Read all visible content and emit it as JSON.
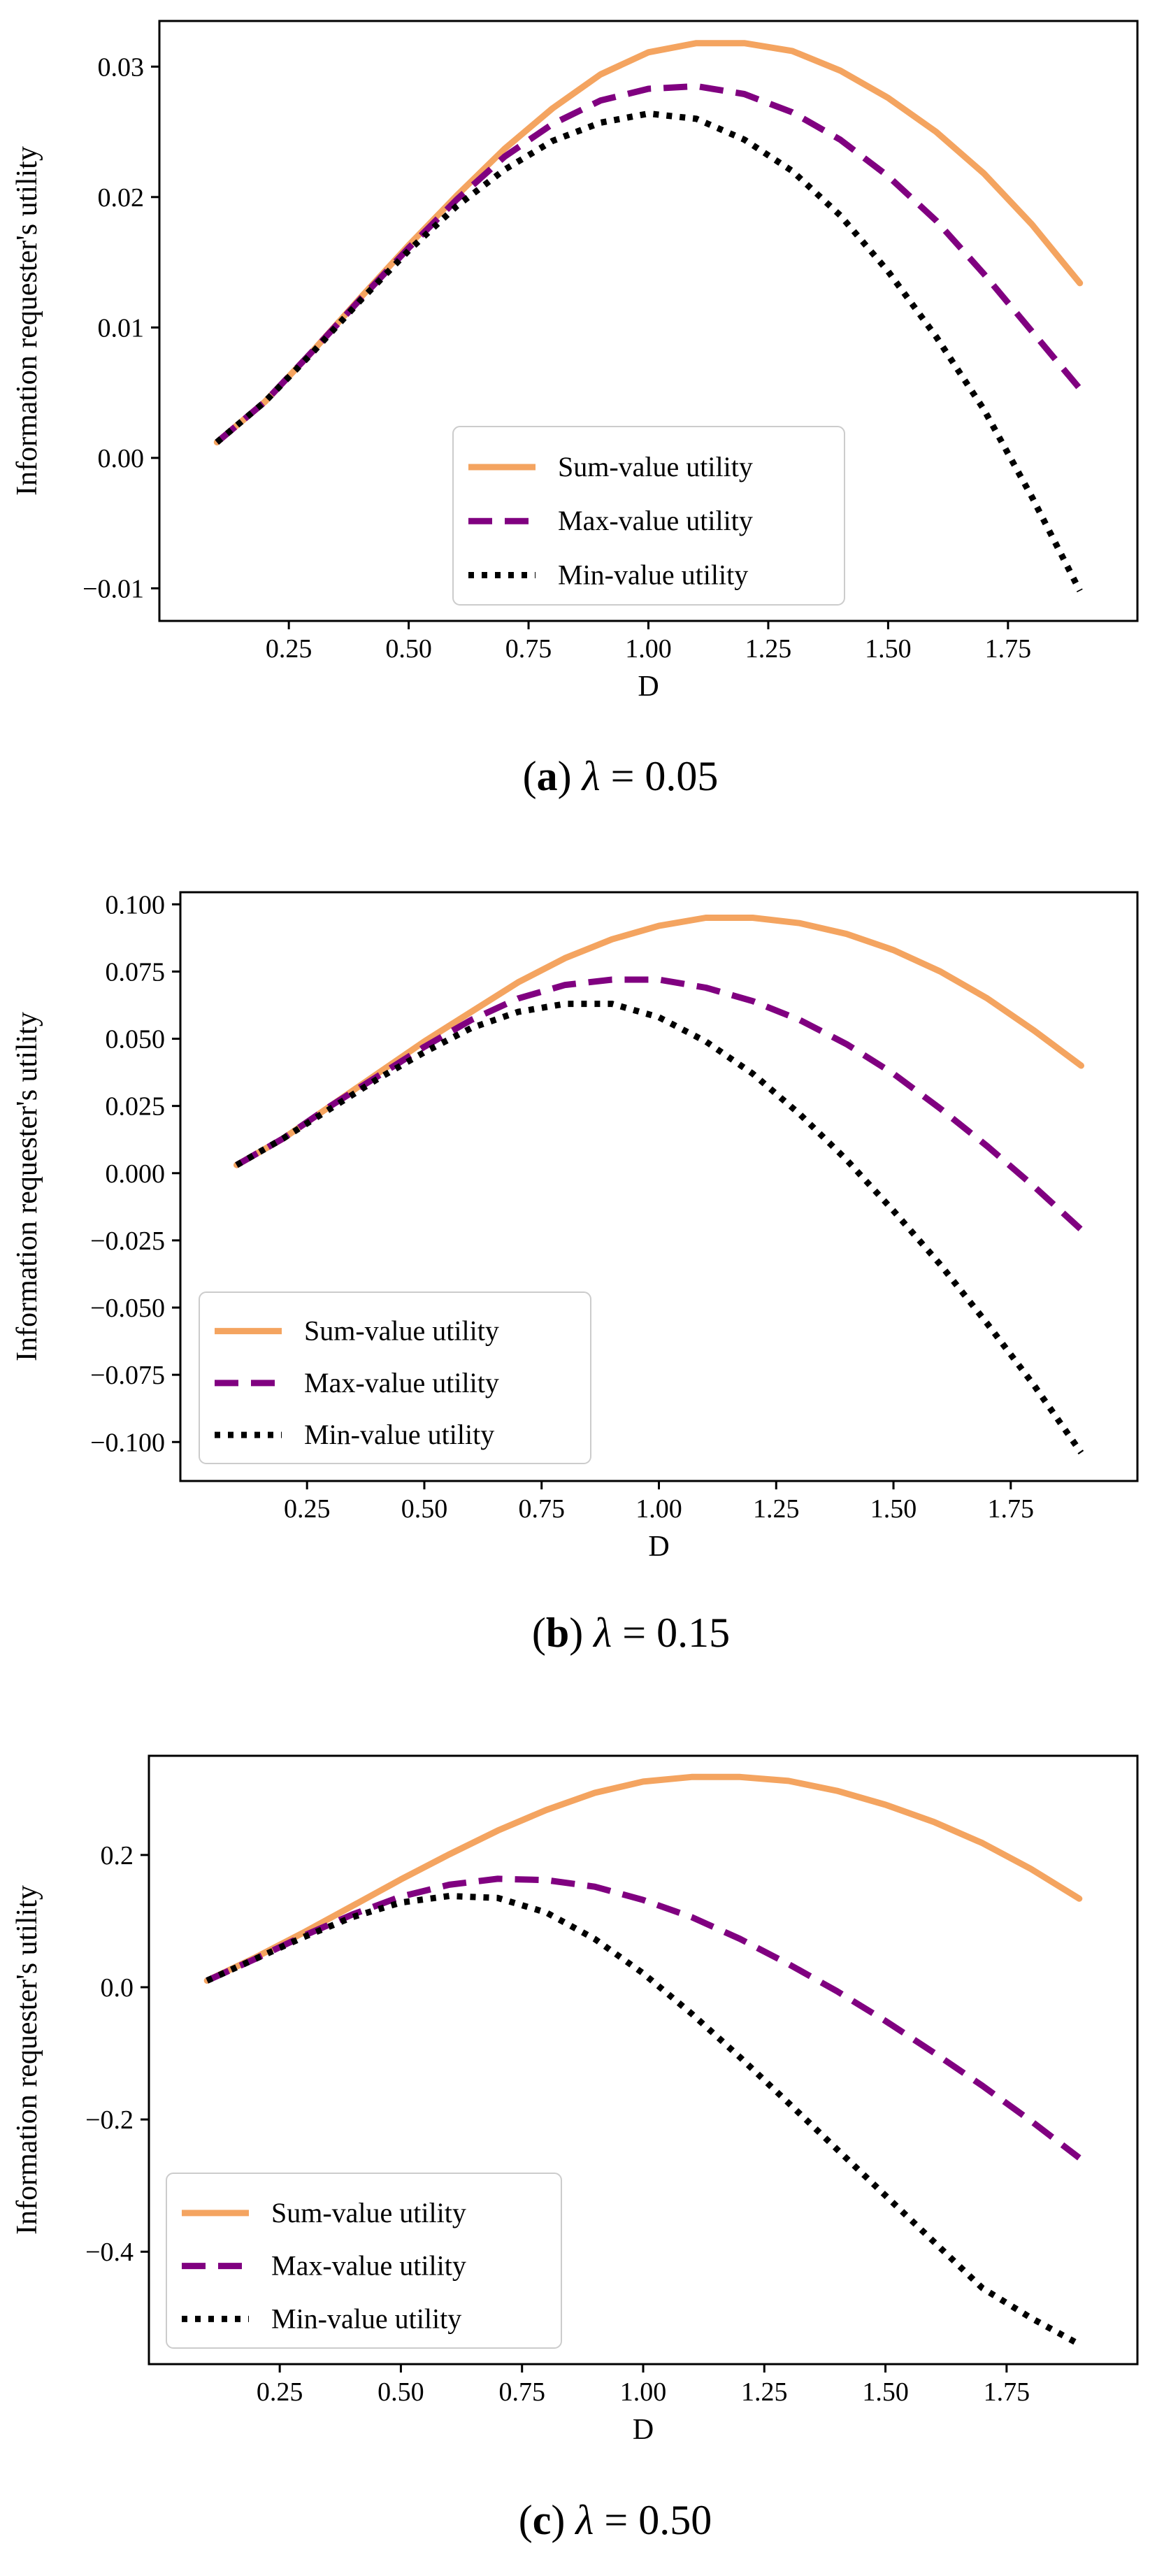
{
  "colors": {
    "sum": "#f4a460",
    "max": "#800080",
    "min": "#000000",
    "axis": "#000000",
    "background": "#ffffff"
  },
  "chart_data": [
    {
      "type": "line",
      "title": "",
      "caption": {
        "letter": "a",
        "symbol": "λ",
        "value": "0.05"
      },
      "xlabel": "D",
      "ylabel": "Information requester's utility",
      "xlim": [
        -0.02,
        2.02
      ],
      "ylim": [
        -0.0125,
        0.0335
      ],
      "xticks": [
        0.25,
        0.5,
        0.75,
        1.0,
        1.25,
        1.5,
        1.75
      ],
      "xtick_labels": [
        "0.25",
        "0.50",
        "0.75",
        "1.00",
        "1.25",
        "1.50",
        "1.75"
      ],
      "yticks": [
        -0.01,
        0.0,
        0.01,
        0.02,
        0.03
      ],
      "ytick_labels": [
        "−0.01",
        "0.00",
        "0.01",
        "0.02",
        "0.03"
      ],
      "legend_position": "lower-center",
      "x": [
        0.1,
        0.2,
        0.3,
        0.4,
        0.5,
        0.6,
        0.7,
        0.8,
        0.9,
        1.0,
        1.1,
        1.2,
        1.3,
        1.4,
        1.5,
        1.6,
        1.7,
        1.8,
        1.9
      ],
      "series": [
        {
          "name": "Sum-value utility",
          "style": "solid",
          "values": [
            0.0012,
            0.0043,
            0.0082,
            0.0123,
            0.0163,
            0.0201,
            0.0237,
            0.0268,
            0.0294,
            0.0311,
            0.0318,
            0.0318,
            0.0312,
            0.0297,
            0.0276,
            0.025,
            0.0218,
            0.0179,
            0.0134
          ]
        },
        {
          "name": "Max-value utility",
          "style": "dashed",
          "values": [
            0.0012,
            0.0043,
            0.0082,
            0.0122,
            0.0161,
            0.0198,
            0.0231,
            0.0256,
            0.0274,
            0.0283,
            0.0285,
            0.0279,
            0.0265,
            0.0244,
            0.0216,
            0.0182,
            0.0141,
            0.0097,
            0.0053
          ]
        },
        {
          "name": "Min-value utility",
          "style": "dotted",
          "values": [
            0.0012,
            0.0043,
            0.0081,
            0.0121,
            0.0159,
            0.0193,
            0.0221,
            0.0243,
            0.0257,
            0.0264,
            0.026,
            0.0244,
            0.022,
            0.0186,
            0.0143,
            0.0093,
            0.0037,
            -0.003,
            -0.0102
          ]
        }
      ]
    },
    {
      "type": "line",
      "title": "",
      "caption": {
        "letter": "b",
        "symbol": "λ",
        "value": "0.15"
      },
      "xlabel": "D",
      "ylabel": "Information requester's utility",
      "xlim": [
        -0.02,
        2.02
      ],
      "ylim": [
        -0.1145,
        0.1045
      ],
      "xticks": [
        0.25,
        0.5,
        0.75,
        1.0,
        1.25,
        1.5,
        1.75
      ],
      "xtick_labels": [
        "0.25",
        "0.50",
        "0.75",
        "1.00",
        "1.25",
        "1.50",
        "1.75"
      ],
      "yticks": [
        -0.1,
        -0.075,
        -0.05,
        -0.025,
        0.0,
        0.025,
        0.05,
        0.075,
        0.1
      ],
      "ytick_labels": [
        "−0.100",
        "−0.075",
        "−0.050",
        "−0.025",
        "0.000",
        "0.025",
        "0.050",
        "0.075",
        "0.100"
      ],
      "legend_position": "lower-left",
      "x": [
        0.1,
        0.2,
        0.3,
        0.4,
        0.5,
        0.6,
        0.7,
        0.8,
        0.9,
        1.0,
        1.1,
        1.2,
        1.3,
        1.4,
        1.5,
        1.6,
        1.7,
        1.8,
        1.9
      ],
      "series": [
        {
          "name": "Sum-value utility",
          "style": "solid",
          "values": [
            0.003,
            0.013,
            0.025,
            0.037,
            0.049,
            0.06,
            0.071,
            0.08,
            0.087,
            0.092,
            0.095,
            0.095,
            0.093,
            0.089,
            0.083,
            0.075,
            0.065,
            0.053,
            0.04
          ]
        },
        {
          "name": "Max-value utility",
          "style": "dashed",
          "values": [
            0.003,
            0.013,
            0.025,
            0.036,
            0.047,
            0.057,
            0.065,
            0.07,
            0.072,
            0.072,
            0.069,
            0.064,
            0.057,
            0.048,
            0.037,
            0.024,
            0.01,
            -0.005,
            -0.021
          ]
        },
        {
          "name": "Min-value utility",
          "style": "dotted",
          "values": [
            0.003,
            0.013,
            0.024,
            0.035,
            0.045,
            0.054,
            0.06,
            0.063,
            0.063,
            0.058,
            0.049,
            0.037,
            0.022,
            0.005,
            -0.014,
            -0.034,
            -0.056,
            -0.079,
            -0.104
          ]
        }
      ]
    },
    {
      "type": "line",
      "title": "",
      "caption": {
        "letter": "c",
        "symbol": "λ",
        "value": "0.50"
      },
      "xlabel": "D",
      "ylabel": "Information requester's utility",
      "xlim": [
        -0.02,
        2.02
      ],
      "ylim": [
        -0.57,
        0.35
      ],
      "xticks": [
        0.25,
        0.5,
        0.75,
        1.0,
        1.25,
        1.5,
        1.75
      ],
      "xtick_labels": [
        "0.25",
        "0.50",
        "0.75",
        "1.00",
        "1.25",
        "1.50",
        "1.75"
      ],
      "yticks": [
        -0.4,
        -0.2,
        0.0,
        0.2
      ],
      "ytick_labels": [
        "−0.4",
        "−0.2",
        "0.0",
        "0.2"
      ],
      "legend_position": "lower-left",
      "x": [
        0.1,
        0.2,
        0.3,
        0.4,
        0.5,
        0.6,
        0.7,
        0.8,
        0.9,
        1.0,
        1.1,
        1.2,
        1.3,
        1.4,
        1.5,
        1.6,
        1.7,
        1.8,
        1.9
      ],
      "series": [
        {
          "name": "Sum-value utility",
          "style": "solid",
          "values": [
            0.01,
            0.045,
            0.083,
            0.123,
            0.163,
            0.201,
            0.237,
            0.268,
            0.294,
            0.311,
            0.318,
            0.318,
            0.312,
            0.297,
            0.276,
            0.25,
            0.218,
            0.179,
            0.134
          ]
        },
        {
          "name": "Max-value utility",
          "style": "dashed",
          "values": [
            0.01,
            0.043,
            0.078,
            0.11,
            0.137,
            0.155,
            0.164,
            0.162,
            0.152,
            0.132,
            0.106,
            0.073,
            0.035,
            -0.006,
            -0.051,
            -0.099,
            -0.149,
            -0.202,
            -0.258
          ]
        },
        {
          "name": "Min-value utility",
          "style": "dotted",
          "values": [
            0.01,
            0.043,
            0.076,
            0.106,
            0.128,
            0.138,
            0.135,
            0.113,
            0.073,
            0.021,
            -0.04,
            -0.106,
            -0.175,
            -0.245,
            -0.315,
            -0.385,
            -0.455,
            -0.5,
            -0.54
          ]
        }
      ]
    }
  ]
}
